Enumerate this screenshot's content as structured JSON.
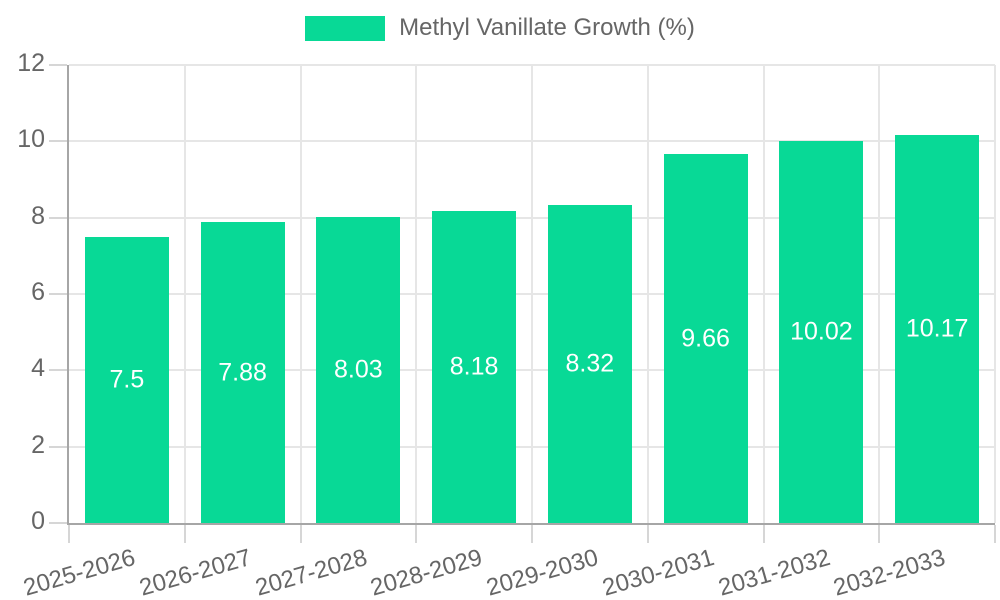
{
  "legend": {
    "label": "Methyl Vanillate Growth (%)",
    "swatch_color": "#08D996"
  },
  "chart_data": {
    "type": "bar",
    "title": "",
    "xlabel": "",
    "ylabel": "",
    "categories": [
      "2025-2026",
      "2026-2027",
      "2027-2028",
      "2028-2029",
      "2029-2030",
      "2030-2031",
      "2031-2032",
      "2032-2033"
    ],
    "values": [
      7.5,
      7.88,
      8.03,
      8.18,
      8.32,
      9.66,
      10.02,
      10.17
    ],
    "series_name": "Methyl Vanillate Growth (%)",
    "ylim": [
      0,
      12
    ],
    "y_ticks": [
      0,
      2,
      4,
      6,
      8,
      10,
      12
    ],
    "grid": true,
    "legend_position": "top",
    "bar_color": "#08D996",
    "value_label_color": "#ffffff",
    "axis_text_color": "#666666",
    "gridline_color": "#e6e6e6",
    "axis_line_color": "#a6a6a6"
  }
}
